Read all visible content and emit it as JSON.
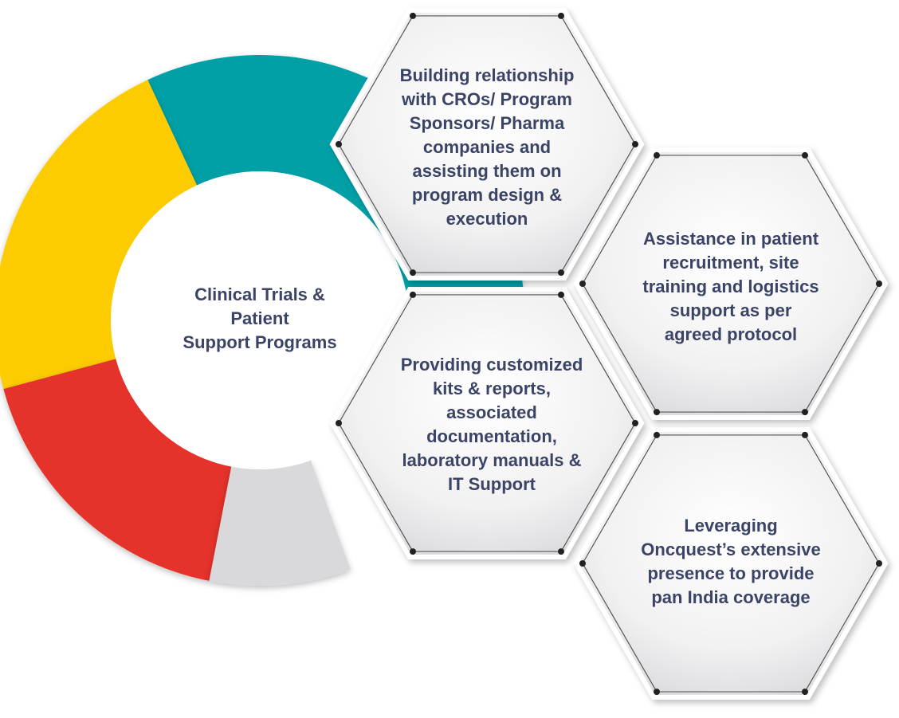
{
  "ring": {
    "segments": [
      {
        "name": "teal",
        "color": "#00a0a6"
      },
      {
        "name": "yellow",
        "color": "#fccc00"
      },
      {
        "name": "red",
        "color": "#e5332a"
      },
      {
        "name": "grey",
        "color": "#d9d9dc"
      }
    ]
  },
  "center": {
    "lines": [
      "Clinical Trials &",
      "Patient",
      "Support Programs"
    ]
  },
  "hexagons": [
    {
      "id": "cros",
      "lines": [
        "Building relationship",
        "with CROs/ Program",
        "Sponsors/ Pharma",
        "companies and",
        "assisting them on",
        "program design &",
        "execution"
      ]
    },
    {
      "id": "recruitment",
      "lines": [
        "Assistance in patient",
        "recruitment, site",
        "training and logistics",
        "support as per",
        "agreed protocol"
      ]
    },
    {
      "id": "kits",
      "lines": [
        "Providing customized",
        "kits & reports,",
        "associated",
        "documentation,",
        "laboratory manuals &",
        "IT Support"
      ]
    },
    {
      "id": "coverage",
      "lines": [
        "Leveraging",
        "Oncquest’s extensive",
        "presence to provide",
        "pan India coverage"
      ]
    }
  ],
  "colors": {
    "text": "#3b4466",
    "hex_fill_light": "#ffffff",
    "hex_fill_dark": "#e4e4e6",
    "dot": "#222222"
  }
}
